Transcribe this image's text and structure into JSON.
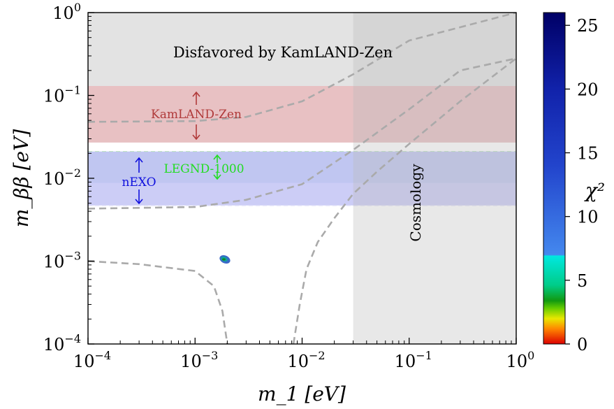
{
  "chart_data": {
    "type": "contour",
    "xlabel": "m_1 [eV]",
    "ylabel": "m_ββ [eV]",
    "x_scale": "log",
    "y_scale": "log",
    "xlim": [
      0.0001,
      1
    ],
    "ylim": [
      0.0001,
      1
    ],
    "x_ticks": [
      {
        "value": 0.0001,
        "base": "10",
        "exp": "−4"
      },
      {
        "value": 0.001,
        "base": "10",
        "exp": "−3"
      },
      {
        "value": 0.01,
        "base": "10",
        "exp": "−2"
      },
      {
        "value": 0.1,
        "base": "10",
        "exp": "−1"
      },
      {
        "value": 1,
        "base": "10",
        "exp": "0"
      }
    ],
    "y_ticks": [
      {
        "value": 0.0001,
        "base": "10",
        "exp": "−4"
      },
      {
        "value": 0.001,
        "base": "10",
        "exp": "−3"
      },
      {
        "value": 0.01,
        "base": "10",
        "exp": "−2"
      },
      {
        "value": 0.1,
        "base": "10",
        "exp": "−1"
      },
      {
        "value": 1,
        "base": "10",
        "exp": "0"
      }
    ],
    "regions": [
      {
        "label": "Disfavored by KamLAND-Zen",
        "y_range": [
          0.13,
          1
        ],
        "color": "#e3e3e3"
      },
      {
        "label": "KamLAND-Zen",
        "y_range": [
          0.027,
          0.13
        ],
        "color": "#e8c1c3",
        "label_color": "#b03a3a"
      },
      {
        "label": "LEGND-1000",
        "y_range": [
          0.0088,
          0.021
        ],
        "color": "#a8cbdc",
        "label_color": "#22dd22"
      },
      {
        "label": "nEXO",
        "y_range": [
          0.0047,
          0.021
        ],
        "color": "#c3c4f4",
        "label_color": "#1010dd"
      },
      {
        "label": "Cosmology",
        "x_range": [
          0.03,
          1
        ],
        "color": "rgba(185,185,185,0.33)"
      }
    ],
    "dashed_curves": [
      {
        "name": "IO upper",
        "points": [
          [
            0.0001,
            0.048
          ],
          [
            0.001,
            0.049
          ],
          [
            0.003,
            0.055
          ],
          [
            0.01,
            0.085
          ],
          [
            0.03,
            0.18
          ],
          [
            0.1,
            0.46
          ],
          [
            1,
            1
          ]
        ]
      },
      {
        "name": "IO lower",
        "points": [
          [
            0.0001,
            0.0043
          ],
          [
            0.001,
            0.0045
          ],
          [
            0.003,
            0.0055
          ],
          [
            0.01,
            0.0085
          ],
          [
            0.03,
            0.022
          ],
          [
            0.1,
            0.068
          ],
          [
            0.3,
            0.2
          ],
          [
            1,
            0.28
          ]
        ]
      },
      {
        "name": "NO upper",
        "points": [
          [
            0.0001,
            0.001
          ],
          [
            0.0003,
            0.00092
          ],
          [
            0.001,
            0.00076
          ],
          [
            0.0015,
            0.0005
          ],
          [
            0.0018,
            0.00025
          ],
          [
            0.002,
            0.0001
          ]
        ]
      },
      {
        "name": "NO lower",
        "points": [
          [
            0.0083,
            0.0001
          ],
          [
            0.0095,
            0.0003
          ],
          [
            0.011,
            0.0008
          ],
          [
            0.014,
            0.0017
          ],
          [
            0.02,
            0.0033
          ],
          [
            0.03,
            0.0065
          ],
          [
            0.05,
            0.012
          ],
          [
            0.1,
            0.026
          ],
          [
            0.3,
            0.085
          ],
          [
            1,
            0.28
          ]
        ]
      }
    ],
    "best_fit_blob": {
      "x": 0.0019,
      "y": 0.00105
    },
    "colorbar": {
      "label": "χ²",
      "range": [
        0,
        26
      ],
      "ticks": [
        "0",
        "5",
        "10",
        "15",
        "20",
        "25"
      ],
      "tick_values": [
        0,
        5,
        10,
        15,
        20,
        25
      ],
      "stops": [
        {
          "value": 0,
          "color": "#dd0000"
        },
        {
          "value": 1.2,
          "color": "#ff8800"
        },
        {
          "value": 2.0,
          "color": "#e8e800"
        },
        {
          "value": 2.8,
          "color": "#66cc00"
        },
        {
          "value": 3.4,
          "color": "#119911"
        },
        {
          "value": 4.6,
          "color": "#00cc88"
        },
        {
          "value": 6.9,
          "color": "#00e8e0"
        },
        {
          "value": 7.0,
          "color": "#4488ee"
        },
        {
          "value": 14,
          "color": "#2244cc"
        },
        {
          "value": 20,
          "color": "#1122aa"
        },
        {
          "value": 26,
          "color": "#000066"
        }
      ]
    }
  }
}
